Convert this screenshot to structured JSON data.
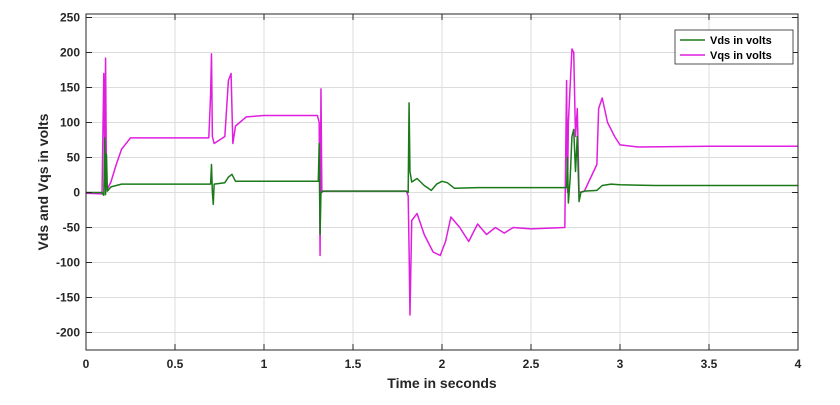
{
  "chart_data": {
    "type": "line",
    "xlabel": "Time in seconds",
    "ylabel": "Vds and Vqs in volts",
    "xlim": [
      0,
      4
    ],
    "ylim": [
      -225,
      255
    ],
    "xticks": [
      0,
      0.5,
      1,
      1.5,
      2,
      2.5,
      3,
      3.5,
      4
    ],
    "xtick_labels": [
      "0",
      "0.5",
      "1",
      "1.5",
      "2",
      "2.5",
      "3",
      "3.5",
      "4"
    ],
    "yticks": [
      -200,
      -150,
      -100,
      -50,
      0,
      50,
      100,
      150,
      200,
      250
    ],
    "ytick_labels": [
      "-200",
      "-150",
      "-100",
      "-50",
      "0",
      "50",
      "100",
      "150",
      "200",
      "250"
    ],
    "grid": true,
    "legend_position": "top-right",
    "series": [
      {
        "name": "Vds in volts",
        "color": "#1a7a1a",
        "points": [
          [
            0,
            0
          ],
          [
            0.09,
            0
          ],
          [
            0.1,
            -4
          ],
          [
            0.105,
            78
          ],
          [
            0.11,
            -3
          ],
          [
            0.115,
            55
          ],
          [
            0.12,
            2
          ],
          [
            0.14,
            8
          ],
          [
            0.2,
            12
          ],
          [
            0.4,
            12
          ],
          [
            0.69,
            12
          ],
          [
            0.7,
            12
          ],
          [
            0.705,
            40
          ],
          [
            0.71,
            0
          ],
          [
            0.715,
            -17
          ],
          [
            0.72,
            12
          ],
          [
            0.78,
            14
          ],
          [
            0.8,
            22
          ],
          [
            0.82,
            26
          ],
          [
            0.84,
            16
          ],
          [
            1.0,
            16
          ],
          [
            1.3,
            16
          ],
          [
            1.305,
            16
          ],
          [
            1.31,
            70
          ],
          [
            1.315,
            -60
          ],
          [
            1.32,
            0
          ],
          [
            1.33,
            2
          ],
          [
            1.5,
            2
          ],
          [
            1.8,
            2
          ],
          [
            1.81,
            0
          ],
          [
            1.815,
            128
          ],
          [
            1.82,
            30
          ],
          [
            1.83,
            15
          ],
          [
            1.86,
            20
          ],
          [
            1.9,
            10
          ],
          [
            1.94,
            3
          ],
          [
            1.97,
            12
          ],
          [
            2.0,
            16
          ],
          [
            2.03,
            14
          ],
          [
            2.07,
            6
          ],
          [
            2.2,
            7
          ],
          [
            2.5,
            7
          ],
          [
            2.69,
            7
          ],
          [
            2.7,
            7
          ],
          [
            2.705,
            50
          ],
          [
            2.71,
            -15
          ],
          [
            2.72,
            20
          ],
          [
            2.73,
            80
          ],
          [
            2.74,
            90
          ],
          [
            2.75,
            30
          ],
          [
            2.76,
            80
          ],
          [
            2.77,
            -13
          ],
          [
            2.78,
            0
          ],
          [
            2.8,
            2
          ],
          [
            2.87,
            3
          ],
          [
            2.9,
            10
          ],
          [
            2.95,
            12
          ],
          [
            3.0,
            11
          ],
          [
            3.2,
            10
          ],
          [
            3.5,
            10
          ],
          [
            4.0,
            10
          ]
        ]
      },
      {
        "name": "Vqs in volts",
        "color": "#e01ee0",
        "points": [
          [
            0,
            -1
          ],
          [
            0.09,
            -2
          ],
          [
            0.1,
            170
          ],
          [
            0.105,
            60
          ],
          [
            0.11,
            192
          ],
          [
            0.115,
            10
          ],
          [
            0.12,
            5
          ],
          [
            0.14,
            15
          ],
          [
            0.17,
            40
          ],
          [
            0.2,
            62
          ],
          [
            0.25,
            78
          ],
          [
            0.4,
            78
          ],
          [
            0.69,
            78
          ],
          [
            0.7,
            140
          ],
          [
            0.705,
            198
          ],
          [
            0.71,
            80
          ],
          [
            0.72,
            70
          ],
          [
            0.78,
            80
          ],
          [
            0.8,
            160
          ],
          [
            0.815,
            170
          ],
          [
            0.825,
            70
          ],
          [
            0.84,
            95
          ],
          [
            0.9,
            108
          ],
          [
            1.0,
            110
          ],
          [
            1.3,
            110
          ],
          [
            1.31,
            100
          ],
          [
            1.315,
            -90
          ],
          [
            1.32,
            148
          ],
          [
            1.325,
            0
          ],
          [
            1.33,
            2
          ],
          [
            1.5,
            2
          ],
          [
            1.8,
            2
          ],
          [
            1.81,
            -5
          ],
          [
            1.815,
            -80
          ],
          [
            1.82,
            -175
          ],
          [
            1.83,
            -40
          ],
          [
            1.86,
            -30
          ],
          [
            1.9,
            -60
          ],
          [
            1.95,
            -85
          ],
          [
            1.99,
            -90
          ],
          [
            2.02,
            -70
          ],
          [
            2.05,
            -35
          ],
          [
            2.1,
            -50
          ],
          [
            2.15,
            -70
          ],
          [
            2.2,
            -45
          ],
          [
            2.25,
            -60
          ],
          [
            2.3,
            -50
          ],
          [
            2.35,
            -58
          ],
          [
            2.4,
            -50
          ],
          [
            2.5,
            -52
          ],
          [
            2.69,
            -50
          ],
          [
            2.7,
            160
          ],
          [
            2.705,
            0
          ],
          [
            2.71,
            100
          ],
          [
            2.73,
            205
          ],
          [
            2.74,
            200
          ],
          [
            2.75,
            80
          ],
          [
            2.76,
            120
          ],
          [
            2.77,
            0
          ],
          [
            2.8,
            2
          ],
          [
            2.87,
            40
          ],
          [
            2.88,
            120
          ],
          [
            2.9,
            135
          ],
          [
            2.93,
            100
          ],
          [
            2.97,
            80
          ],
          [
            3.0,
            68
          ],
          [
            3.1,
            65
          ],
          [
            3.5,
            66
          ],
          [
            4.0,
            66
          ]
        ]
      }
    ]
  }
}
